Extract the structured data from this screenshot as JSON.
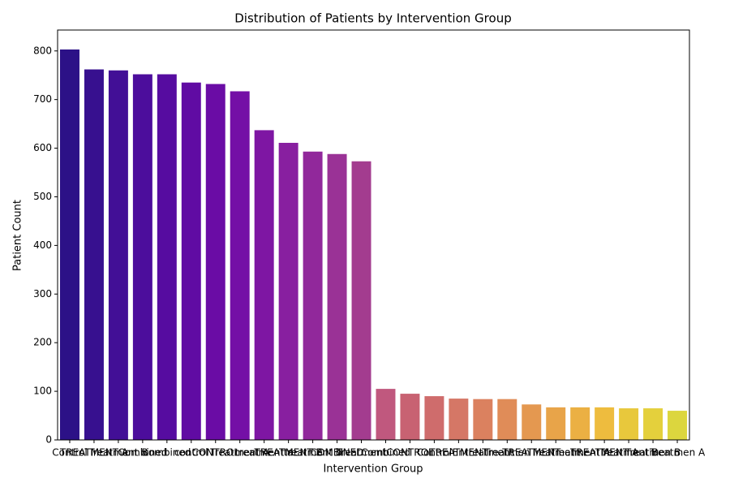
{
  "chart_data": {
    "type": "bar",
    "title": "Distribution of Patients by Intervention Group",
    "x_label": "Intervention Group",
    "y_label": "Patient Count",
    "categories": [
      "Control",
      "TREATMENT A",
      "Treatment B",
      "Combined",
      "combined",
      "control",
      "CONTROL",
      "Treatment A",
      "treatment a",
      "TREATMENT B",
      "treatment b",
      "COMBINED",
      "Treatment",
      "Combined ",
      "CONTROL ",
      "Control ",
      "TREATMENT",
      "Entreatment",
      "Treatmen",
      "TREATMENT ",
      "Treatment ",
      "Treatment A ",
      "TREATMENT A ",
      "Treatment B ",
      "Treatmen B",
      "Treatmen A"
    ],
    "values": [
      803,
      762,
      760,
      752,
      752,
      735,
      732,
      717,
      637,
      611,
      593,
      588,
      573,
      105,
      95,
      90,
      85,
      84,
      84,
      73,
      67,
      67,
      67,
      65,
      65,
      60
    ],
    "colors": [
      "#2c1187",
      "#37108f",
      "#420f96",
      "#4c0d9c",
      "#560ca0",
      "#600ba3",
      "#6a0ca5",
      "#740fa6",
      "#7e16a3",
      "#881fa0",
      "#91289b",
      "#9a3296",
      "#a33c8f",
      "#c0587e",
      "#c86272",
      "#cf6c6c",
      "#d57766",
      "#db815f",
      "#e08c58",
      "#e49850",
      "#e8a449",
      "#ebb043",
      "#eebc3e",
      "#e8c83c",
      "#e4d03c",
      "#dcd63e"
    ],
    "ylim": [
      0,
      843
    ],
    "yticks": [
      0,
      100,
      200,
      300,
      400,
      500,
      600,
      700,
      800
    ],
    "grid": false
  }
}
